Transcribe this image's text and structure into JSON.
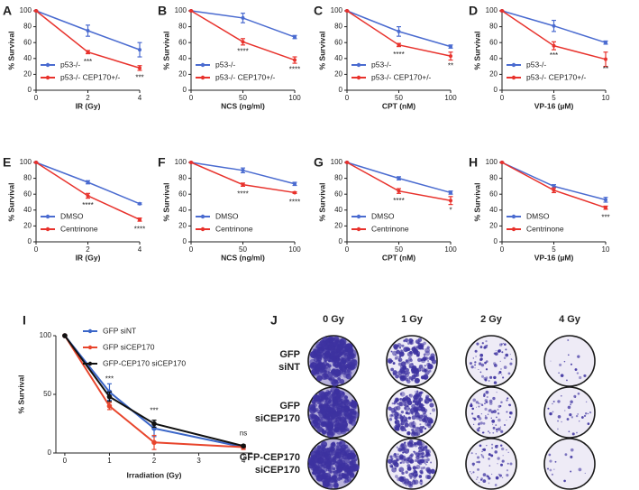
{
  "chart_data": [
    {
      "panel": "A",
      "type": "line",
      "x": [
        0,
        2,
        4
      ],
      "xlim": [
        0,
        4
      ],
      "xticks": [
        0,
        2,
        4
      ],
      "ylim": [
        0,
        100
      ],
      "yticks": [
        0,
        20,
        40,
        60,
        80,
        100
      ],
      "xlabel": "IR (Gy)",
      "ylabel": "% Survival",
      "series": [
        {
          "name": "p53-/-",
          "color": "#4a6bd0",
          "values": [
            100,
            75,
            51
          ],
          "errors": [
            0,
            7,
            9
          ]
        },
        {
          "name": "p53-/- CEP170+/-",
          "color": "#e8322c",
          "values": [
            100,
            48,
            28
          ],
          "errors": [
            0,
            2,
            3
          ]
        }
      ],
      "annotations": [
        {
          "x": 2,
          "text": "***"
        },
        {
          "x": 4,
          "text": "***"
        }
      ]
    },
    {
      "panel": "B",
      "type": "line",
      "x": [
        0,
        50,
        100
      ],
      "xlim": [
        0,
        100
      ],
      "xticks": [
        0,
        50,
        100
      ],
      "ylim": [
        0,
        100
      ],
      "yticks": [
        0,
        20,
        40,
        60,
        80,
        100
      ],
      "xlabel": "NCS (ng/ml)",
      "ylabel": "% Survival",
      "series": [
        {
          "name": "p53-/-",
          "color": "#4a6bd0",
          "values": [
            100,
            91,
            67
          ],
          "errors": [
            0,
            6,
            2
          ]
        },
        {
          "name": "p53-/- CEP170+/-",
          "color": "#e8322c",
          "values": [
            100,
            61,
            38
          ],
          "errors": [
            0,
            4,
            4
          ]
        }
      ],
      "annotations": [
        {
          "x": 50,
          "text": "****"
        },
        {
          "x": 100,
          "text": "****"
        }
      ]
    },
    {
      "panel": "C",
      "type": "line",
      "x": [
        0,
        50,
        100
      ],
      "xlim": [
        0,
        100
      ],
      "xticks": [
        0,
        50,
        100
      ],
      "ylim": [
        0,
        100
      ],
      "yticks": [
        0,
        20,
        40,
        60,
        80,
        100
      ],
      "xlabel": "CPT (nM)",
      "ylabel": "% Survival",
      "series": [
        {
          "name": "p53-/-",
          "color": "#4a6bd0",
          "values": [
            100,
            74,
            55
          ],
          "errors": [
            0,
            6,
            2
          ]
        },
        {
          "name": "p53-/- CEP170+/-",
          "color": "#e8322c",
          "values": [
            100,
            57,
            43
          ],
          "errors": [
            0,
            2,
            5
          ]
        }
      ],
      "annotations": [
        {
          "x": 50,
          "text": "****"
        },
        {
          "x": 100,
          "text": "**"
        }
      ]
    },
    {
      "panel": "D",
      "type": "line",
      "x": [
        0,
        5,
        10
      ],
      "xlim": [
        0,
        10
      ],
      "xticks": [
        0,
        5,
        10
      ],
      "ylim": [
        0,
        100
      ],
      "yticks": [
        0,
        20,
        40,
        60,
        80,
        100
      ],
      "xlabel": "VP-16 (µM)",
      "ylabel": "% Survival",
      "series": [
        {
          "name": "p53-/-",
          "color": "#4a6bd0",
          "values": [
            100,
            81,
            60
          ],
          "errors": [
            0,
            7,
            2
          ]
        },
        {
          "name": "p53-/- CEP170+/-",
          "color": "#e8322c",
          "values": [
            100,
            56,
            39
          ],
          "errors": [
            0,
            5,
            9
          ]
        }
      ],
      "annotations": [
        {
          "x": 5,
          "text": "***"
        },
        {
          "x": 10,
          "text": "**"
        }
      ]
    },
    {
      "panel": "E",
      "type": "line",
      "x": [
        0,
        2,
        4
      ],
      "xlim": [
        0,
        4
      ],
      "xticks": [
        0,
        2,
        4
      ],
      "ylim": [
        0,
        100
      ],
      "yticks": [
        0,
        20,
        40,
        60,
        80,
        100
      ],
      "xlabel": "IR (Gy)",
      "ylabel": "% Survival",
      "series": [
        {
          "name": "DMSO",
          "color": "#4a6bd0",
          "values": [
            100,
            75,
            48
          ],
          "errors": [
            0,
            2,
            1
          ]
        },
        {
          "name": "Centrinone",
          "color": "#e8322c",
          "values": [
            100,
            58,
            28
          ],
          "errors": [
            0,
            3,
            2
          ]
        }
      ],
      "annotations": [
        {
          "x": 2,
          "text": "****"
        },
        {
          "x": 4,
          "text": "****"
        }
      ]
    },
    {
      "panel": "F",
      "type": "line",
      "x": [
        0,
        50,
        100
      ],
      "xlim": [
        0,
        100
      ],
      "xticks": [
        0,
        50,
        100
      ],
      "ylim": [
        0,
        100
      ],
      "yticks": [
        0,
        20,
        40,
        60,
        80,
        100
      ],
      "xlabel": "NCS (ng/ml)",
      "ylabel": "% Survival",
      "series": [
        {
          "name": "DMSO",
          "color": "#4a6bd0",
          "values": [
            100,
            90,
            73
          ],
          "errors": [
            0,
            3,
            2
          ]
        },
        {
          "name": "Centrinone",
          "color": "#e8322c",
          "values": [
            100,
            72,
            62
          ],
          "errors": [
            0,
            2,
            1
          ]
        }
      ],
      "annotations": [
        {
          "x": 50,
          "text": "****"
        },
        {
          "x": 100,
          "text": "****"
        }
      ]
    },
    {
      "panel": "G",
      "type": "line",
      "x": [
        0,
        50,
        100
      ],
      "xlim": [
        0,
        100
      ],
      "xticks": [
        0,
        50,
        100
      ],
      "ylim": [
        0,
        100
      ],
      "yticks": [
        0,
        20,
        40,
        60,
        80,
        100
      ],
      "xlabel": "CPT (nM)",
      "ylabel": "% Survival",
      "series": [
        {
          "name": "DMSO",
          "color": "#4a6bd0",
          "values": [
            100,
            80,
            62
          ],
          "errors": [
            0,
            2,
            2
          ]
        },
        {
          "name": "Centrinone",
          "color": "#e8322c",
          "values": [
            100,
            64,
            52
          ],
          "errors": [
            0,
            3,
            5
          ]
        }
      ],
      "annotations": [
        {
          "x": 50,
          "text": "****"
        },
        {
          "x": 100,
          "text": "*"
        }
      ]
    },
    {
      "panel": "H",
      "type": "line",
      "x": [
        0,
        5,
        10
      ],
      "xlim": [
        0,
        10
      ],
      "xticks": [
        0,
        5,
        10
      ],
      "ylim": [
        0,
        100
      ],
      "yticks": [
        0,
        20,
        40,
        60,
        80,
        100
      ],
      "xlabel": "VP-16 (µM)",
      "ylabel": "% Survival",
      "series": [
        {
          "name": "DMSO",
          "color": "#4a6bd0",
          "values": [
            100,
            70,
            53
          ],
          "errors": [
            0,
            2,
            3
          ]
        },
        {
          "name": "Centrinone",
          "color": "#e8322c",
          "values": [
            100,
            65,
            43
          ],
          "errors": [
            0,
            3,
            2
          ]
        }
      ],
      "annotations": [
        {
          "x": 10,
          "text": "***"
        }
      ]
    },
    {
      "panel": "I",
      "type": "line",
      "x": [
        0,
        1,
        2,
        4
      ],
      "xlim": [
        -0.2,
        4.2
      ],
      "xticks": [
        0,
        1,
        2,
        3,
        4
      ],
      "ylim": [
        0,
        100
      ],
      "yticks": [
        0,
        50,
        100
      ],
      "xlabel": "Irradiation (Gy)",
      "ylabel": "% Survival",
      "series": [
        {
          "name": "GFP siNT",
          "color": "#3b66c8",
          "values": [
            100,
            52,
            21,
            5
          ],
          "errors": [
            0,
            7,
            7,
            1
          ]
        },
        {
          "name": "GFP siCEP170",
          "color": "#e8452c",
          "values": [
            100,
            40,
            9,
            5
          ],
          "errors": [
            0,
            3,
            6,
            2
          ]
        },
        {
          "name": "GFP-CEP170 siCEP170",
          "color": "#111111",
          "values": [
            100,
            48,
            25,
            6
          ],
          "errors": [
            0,
            4,
            3,
            1
          ]
        }
      ],
      "annotations": [
        {
          "x": 1,
          "text": "***"
        },
        {
          "x": 2,
          "text": "***"
        },
        {
          "x": 4,
          "text": "ns"
        }
      ]
    }
  ],
  "image_panel": {
    "panel": "J",
    "columns": [
      "0 Gy",
      "1 Gy",
      "2 Gy",
      "4 Gy"
    ],
    "rows": [
      [
        "GFP",
        "siNT"
      ],
      [
        "GFP",
        "siCEP170"
      ],
      [
        "GFP-CEP170",
        "siCEP170"
      ]
    ]
  }
}
